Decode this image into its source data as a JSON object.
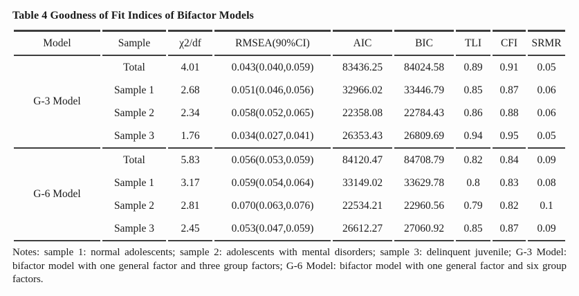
{
  "title": "Table 4 Goodness of Fit Indices of Bifactor Models",
  "table": {
    "columns": [
      "Model",
      "Sample",
      "χ2/df",
      "RMSEA(90%CI)",
      "AIC",
      "BIC",
      "TLI",
      "CFI",
      "SRMR"
    ],
    "groups": [
      {
        "model": "G-3 Model",
        "rows": [
          {
            "sample": "Total",
            "chi2_df": "4.01",
            "rmsea": "0.043(0.040,0.059)",
            "aic": "83436.25",
            "bic": "84024.58",
            "tli": "0.89",
            "cfi": "0.91",
            "srmr": "0.05"
          },
          {
            "sample": "Sample 1",
            "chi2_df": "2.68",
            "rmsea": "0.051(0.046,0.056)",
            "aic": "32966.02",
            "bic": "33446.79",
            "tli": "0.85",
            "cfi": "0.87",
            "srmr": "0.06"
          },
          {
            "sample": "Sample 2",
            "chi2_df": "2.34",
            "rmsea": "0.058(0.052,0.065)",
            "aic": "22358.08",
            "bic": "22784.43",
            "tli": "0.86",
            "cfi": "0.88",
            "srmr": "0.06"
          },
          {
            "sample": "Sample 3",
            "chi2_df": "1.76",
            "rmsea": "0.034(0.027,0.041)",
            "aic": "26353.43",
            "bic": "26809.69",
            "tli": "0.94",
            "cfi": "0.95",
            "srmr": "0.05"
          }
        ]
      },
      {
        "model": "G-6 Model",
        "rows": [
          {
            "sample": "Total",
            "chi2_df": "5.83",
            "rmsea": "0.056(0.053,0.059)",
            "aic": "84120.47",
            "bic": "84708.79",
            "tli": "0.82",
            "cfi": "0.84",
            "srmr": "0.09"
          },
          {
            "sample": "Sample 1",
            "chi2_df": "3.17",
            "rmsea": "0.059(0.054,0.064)",
            "aic": "33149.02",
            "bic": "33629.78",
            "tli": "0.8",
            "cfi": "0.83",
            "srmr": "0.08"
          },
          {
            "sample": "Sample 2",
            "chi2_df": "2.81",
            "rmsea": "0.070(0.063,0.076)",
            "aic": "22534.21",
            "bic": "22960.56",
            "tli": "0.79",
            "cfi": "0.82",
            "srmr": "0.1"
          },
          {
            "sample": "Sample 3",
            "chi2_df": "2.45",
            "rmsea": "0.053(0.047,0.059)",
            "aic": "26612.27",
            "bic": "27060.92",
            "tli": "0.85",
            "cfi": "0.87",
            "srmr": "0.09"
          }
        ]
      }
    ]
  },
  "notes": "Notes: sample 1: normal adolescents; sample 2: adolescents with mental disorders; sample 3: delinquent juvenile; G-3 Model: bifactor model with one general factor and three group factors; G-6 Model: bifactor model with one general factor and six group factors.",
  "colors": {
    "background": "#fdfdfd",
    "text": "#1b1b1b",
    "rule": "#3d3d3d"
  }
}
